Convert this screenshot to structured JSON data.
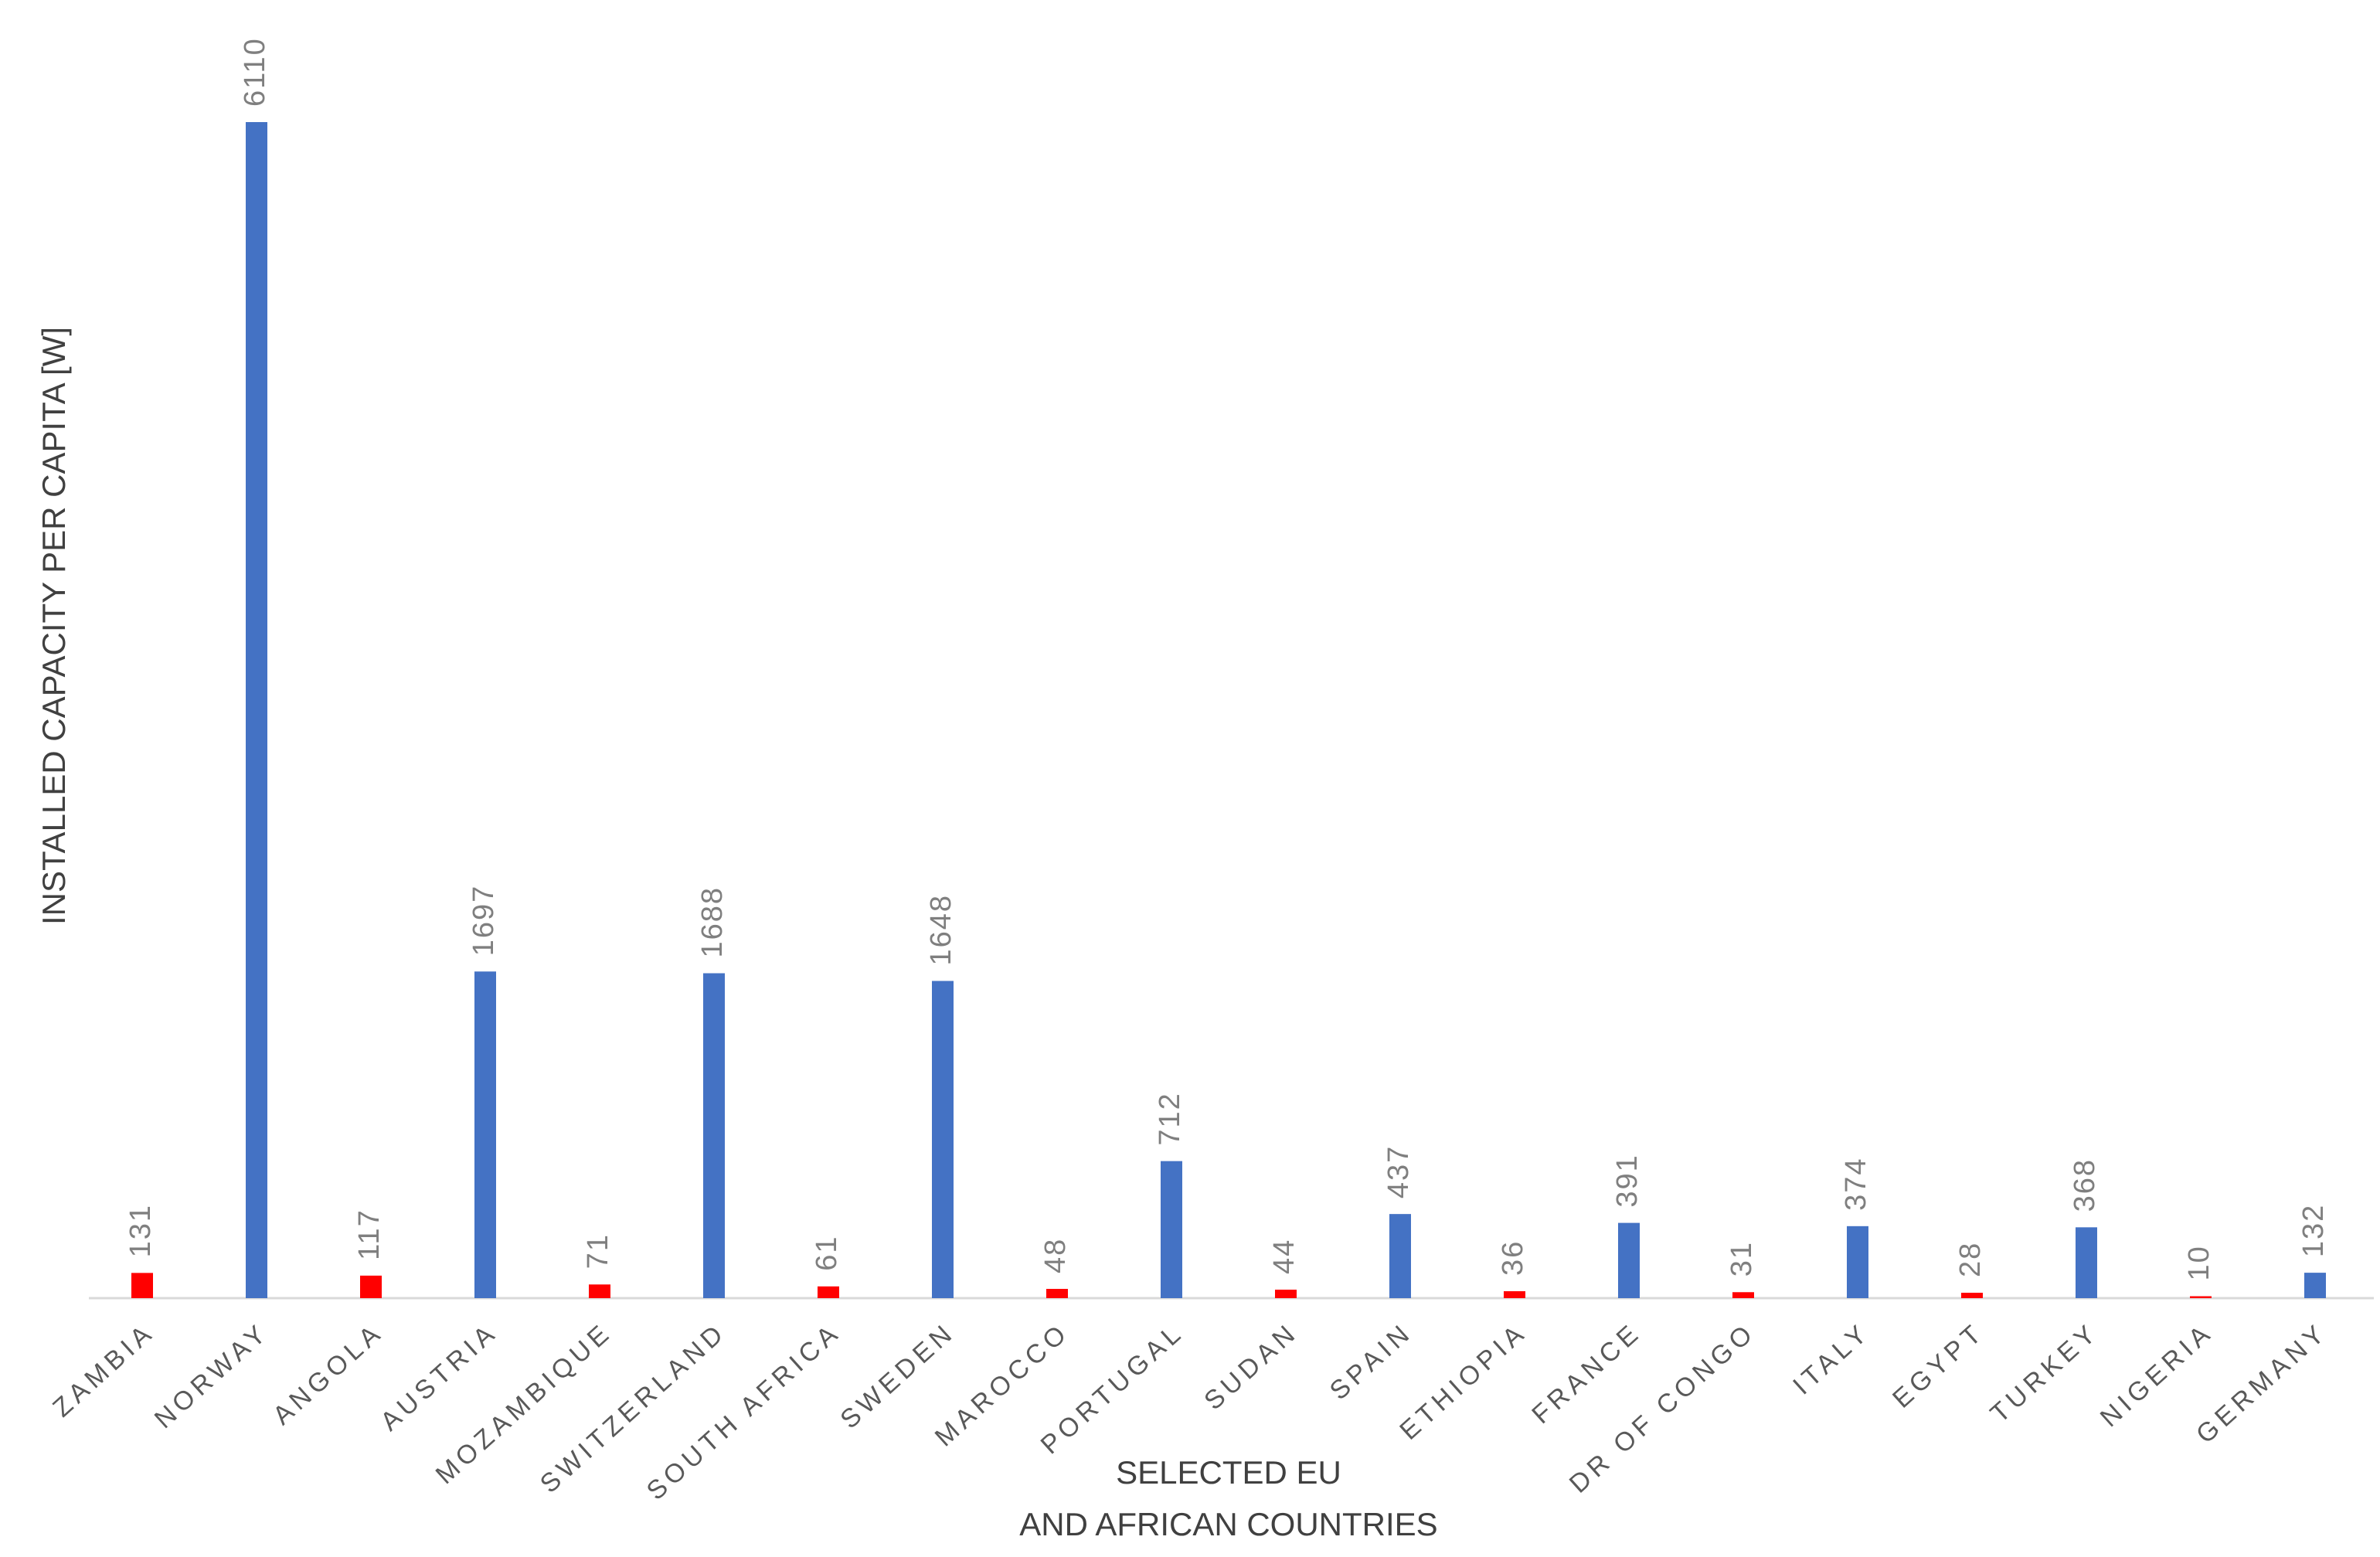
{
  "chart_data": {
    "type": "bar",
    "ylabel": "INSTALLED CAPACITY PER CAPITA [W]",
    "xlabel": [
      "SELECTED EU",
      "AND AFRICAN COUNTRIES"
    ],
    "categories": [
      "ZAMBIA",
      "NORWAY",
      "ANGOLA",
      "AUSTRIA",
      "MOZAMBIQUE",
      "SWITZERLAND",
      "SOUTH AFRICA",
      "SWEDEN",
      "MAROCCO",
      "PORTUGAL",
      "SUDAN",
      "SPAIN",
      "ETHIOPIA",
      "FRANCE",
      "DR OF CONGO",
      "ITALY",
      "EGYPT",
      "TURKEY",
      "NIGERIA",
      "GERMANY"
    ],
    "values": [
      131,
      6110,
      117,
      1697,
      71,
      1688,
      61,
      1648,
      48,
      712,
      44,
      437,
      36,
      391,
      31,
      374,
      28,
      368,
      10,
      132
    ],
    "colors": [
      "#ff0000",
      "#4472c4",
      "#ff0000",
      "#4472c4",
      "#ff0000",
      "#4472c4",
      "#ff0000",
      "#4472c4",
      "#ff0000",
      "#4472c4",
      "#ff0000",
      "#4472c4",
      "#ff0000",
      "#4472c4",
      "#ff0000",
      "#4472c4",
      "#ff0000",
      "#4472c4",
      "#ff0000",
      "#4472c4"
    ]
  }
}
